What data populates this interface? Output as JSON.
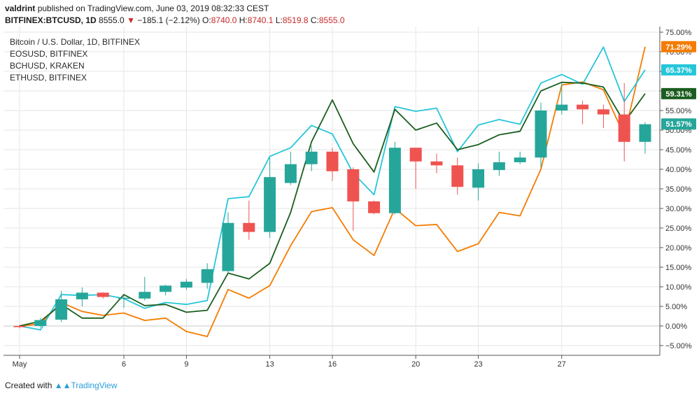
{
  "header": {
    "user": "valdrint",
    "published": "published on TradingView.com, June 03, 2019 08:32:33 CEST",
    "symbol": "BITFINEX:BTCUSD, 1D",
    "last": "8555.0",
    "arrow": "▼",
    "change": "−185.1 (−2.12%)",
    "o_label": "O:",
    "o": "8740.0",
    "h_label": "H:",
    "h": "8740.1",
    "l_label": "L:",
    "l": "8519.8",
    "c_label": "C:",
    "c": "8555.0"
  },
  "legend": {
    "main": "Bitcoin / U.S. Dollar, 1D, BITFINEX",
    "items": [
      "EOSUSD, BITFINEX",
      "BCHUSD, KRAKEN",
      "ETHUSD, BITFINEX"
    ]
  },
  "footer": {
    "created": "Created with",
    "brand": "TradingView"
  },
  "colors": {
    "up": "#26a69a",
    "down": "#ef5350",
    "eos": "#f57c00",
    "bch": "#26c6da",
    "eth": "#1b5e20",
    "grid": "#e6e6e6",
    "zero": "#c8c8c8",
    "axis": "#555555"
  },
  "chart_data": {
    "type": "candlestick-comparison",
    "y_unit": "%",
    "ylim": [
      -6.5,
      76
    ],
    "y_ticks": [
      -5,
      0,
      5,
      10,
      15,
      20,
      25,
      30,
      35,
      40,
      45,
      50,
      55,
      60,
      65,
      70,
      75
    ],
    "x_ticks": [
      {
        "label": "May",
        "day": 0
      },
      {
        "label": "6",
        "day": 5
      },
      {
        "label": "9",
        "day": 8
      },
      {
        "label": "13",
        "day": 12
      },
      {
        "label": "16",
        "day": 15
      },
      {
        "label": "20",
        "day": 19
      },
      {
        "label": "23",
        "day": 22
      },
      {
        "label": "27",
        "day": 26
      }
    ],
    "candles": [
      {
        "o": 0.0,
        "h": 0.3,
        "l": -0.6,
        "c": -0.3
      },
      {
        "o": 0.0,
        "h": 2.0,
        "l": -0.4,
        "c": 1.5
      },
      {
        "o": 1.6,
        "h": 9.0,
        "l": 1.0,
        "c": 6.8
      },
      {
        "o": 6.8,
        "h": 9.8,
        "l": 5.0,
        "c": 8.5
      },
      {
        "o": 8.5,
        "h": 8.6,
        "l": 7.0,
        "c": 7.4
      },
      {
        "o": 7.2,
        "h": 7.7,
        "l": 4.6,
        "c": 7.2
      },
      {
        "o": 7.0,
        "h": 12.5,
        "l": 6.5,
        "c": 8.7
      },
      {
        "o": 8.7,
        "h": 10.5,
        "l": 7.8,
        "c": 10.3
      },
      {
        "o": 9.8,
        "h": 12.0,
        "l": 9.2,
        "c": 11.3
      },
      {
        "o": 11.0,
        "h": 16.0,
        "l": 9.5,
        "c": 14.5
      },
      {
        "o": 14.0,
        "h": 29.0,
        "l": 13.5,
        "c": 26.3
      },
      {
        "o": 26.3,
        "h": 32.0,
        "l": 22.0,
        "c": 24.0
      },
      {
        "o": 24.0,
        "h": 43.0,
        "l": 22.5,
        "c": 38.0
      },
      {
        "o": 36.5,
        "h": 44.5,
        "l": 36.0,
        "c": 41.3
      },
      {
        "o": 41.3,
        "h": 46.0,
        "l": 39.5,
        "c": 44.5
      },
      {
        "o": 44.5,
        "h": 45.5,
        "l": 37.0,
        "c": 39.5
      },
      {
        "o": 40.0,
        "h": 40.5,
        "l": 24.3,
        "c": 31.8
      },
      {
        "o": 31.8,
        "h": 32.0,
        "l": 28.5,
        "c": 28.8
      },
      {
        "o": 28.8,
        "h": 47.0,
        "l": 28.5,
        "c": 45.5
      },
      {
        "o": 45.5,
        "h": 45.5,
        "l": 35.0,
        "c": 42.0
      },
      {
        "o": 42.0,
        "h": 44.0,
        "l": 39.0,
        "c": 41.0
      },
      {
        "o": 41.0,
        "h": 43.0,
        "l": 33.5,
        "c": 35.5
      },
      {
        "o": 35.3,
        "h": 41.5,
        "l": 32.0,
        "c": 40.0
      },
      {
        "o": 39.8,
        "h": 44.5,
        "l": 38.3,
        "c": 41.8
      },
      {
        "o": 41.8,
        "h": 44.5,
        "l": 41.3,
        "c": 43.0
      },
      {
        "o": 43.0,
        "h": 57.0,
        "l": 40.5,
        "c": 55.0
      },
      {
        "o": 55.0,
        "h": 62.0,
        "l": 54.0,
        "c": 56.5
      },
      {
        "o": 56.5,
        "h": 57.5,
        "l": 51.5,
        "c": 55.3
      },
      {
        "o": 55.3,
        "h": 56.5,
        "l": 50.5,
        "c": 54.0
      },
      {
        "o": 54.0,
        "h": 62.0,
        "l": 42.0,
        "c": 47.0
      },
      {
        "o": 47.0,
        "h": 52.0,
        "l": 44.0,
        "c": 51.5
      }
    ],
    "series": [
      {
        "name": "EOSUSD, BITFINEX",
        "last_label": "71.29%",
        "values": [
          0.0,
          0.5,
          6.0,
          3.7,
          2.7,
          3.3,
          1.4,
          2.0,
          -1.4,
          -2.7,
          9.3,
          7.1,
          10.3,
          20.5,
          29.2,
          30.2,
          22.0,
          18.0,
          30.0,
          25.6,
          25.9,
          19.0,
          21.0,
          29.0,
          28.1,
          40.0,
          61.5,
          62.3,
          60.3,
          48.6,
          71.29
        ]
      },
      {
        "name": "BCHUSD, KRAKEN",
        "last_label": "65.37%",
        "values": [
          0.0,
          -1.0,
          8.0,
          7.8,
          8.0,
          7.0,
          4.5,
          6.0,
          5.5,
          6.5,
          32.5,
          33.0,
          43.3,
          45.5,
          51.2,
          49.0,
          39.0,
          33.5,
          56.0,
          54.8,
          55.6,
          44.5,
          51.3,
          52.7,
          51.5,
          62.0,
          64.2,
          61.7,
          71.2,
          57.3,
          65.37
        ]
      },
      {
        "name": "ETHUSD, BITFINEX",
        "last_label": "59.31%",
        "values": [
          0.0,
          1.2,
          5.5,
          2.0,
          2.0,
          8.0,
          5.2,
          5.5,
          3.5,
          4.0,
          13.5,
          12.0,
          16.0,
          29.0,
          47.0,
          57.7,
          46.5,
          39.3,
          55.3,
          50.0,
          51.8,
          45.0,
          46.3,
          48.8,
          49.7,
          60.0,
          62.2,
          62.0,
          61.0,
          52.0,
          59.31
        ]
      }
    ],
    "last_btc_label": "51.57%"
  }
}
